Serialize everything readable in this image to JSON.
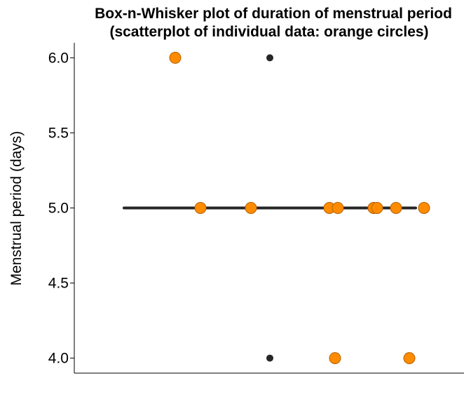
{
  "chart_data": {
    "type": "box-scatter",
    "title_line1": "Box-n-Whisker plot of duration of menstrual period",
    "title_line2": "(scatterplot of individual data: orange circles)",
    "xlabel": "",
    "ylabel": "Menstrual period (days)",
    "ylim": [
      3.9,
      6.1
    ],
    "yticks": [
      4.0,
      4.5,
      5.0,
      5.5,
      6.0
    ],
    "ytick_labels": [
      "4.0",
      "4.5",
      "5.0",
      "5.5",
      "6.0"
    ],
    "grid": false,
    "box": {
      "q1": 5.0,
      "median": 5.0,
      "q3": 5.0,
      "whisker_low": 5.0,
      "whisker_high": 5.0
    },
    "outliers": [
      6.0,
      4.0
    ],
    "points": [
      6,
      5,
      5,
      5,
      5,
      5,
      5,
      5,
      5,
      5,
      4,
      4
    ],
    "colors": {
      "points_fill": "#FF8C00",
      "points_stroke": "#B35F00",
      "box": "#262626",
      "outlier": "#262626",
      "axis": "#000000"
    }
  }
}
